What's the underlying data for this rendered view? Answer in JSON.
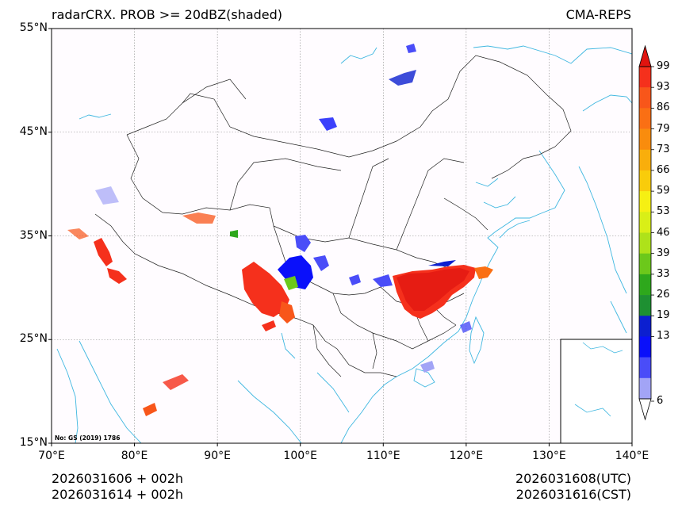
{
  "title": {
    "left": "radarCRX. PROB >= 20dBZ(shaded)",
    "right": "CMA-REPS"
  },
  "map": {
    "projection": "lat-lon",
    "lon_range": [
      70,
      140
    ],
    "lat_range": [
      15,
      55
    ],
    "lat_ticks": [
      "55°N",
      "45°N",
      "35°N",
      "25°N",
      "15°N"
    ],
    "lon_ticks": [
      "70°E",
      "80°E",
      "90°E",
      "100°E",
      "110°E",
      "120°E",
      "130°E",
      "140°E"
    ],
    "gridlines": true,
    "watermark": "No: GS (2019) 1786"
  },
  "colorbar": {
    "labels": [
      "99",
      "93",
      "86",
      "79",
      "73",
      "66",
      "59",
      "53",
      "46",
      "39",
      "33",
      "26",
      "19",
      "13",
      "6"
    ],
    "colors": [
      "#f5301c",
      "#f8561a",
      "#fa6f14",
      "#f98c0d",
      "#f9ae0c",
      "#f9cc0b",
      "#f6f013",
      "#d9ef17",
      "#aee21a",
      "#6cc81b",
      "#2ea81c",
      "#1e9032",
      "#0c1fd0",
      "#0a10fa",
      "#4a4df8",
      "#a2a4f6"
    ],
    "extend_top": "#e0140f"
  },
  "footer": {
    "left_line1": "2026031606  +  002h",
    "left_line2": "2026031614  +  002h",
    "right_line1": "2026031608(UTC)",
    "right_line2": "2026031616(CST)"
  }
}
